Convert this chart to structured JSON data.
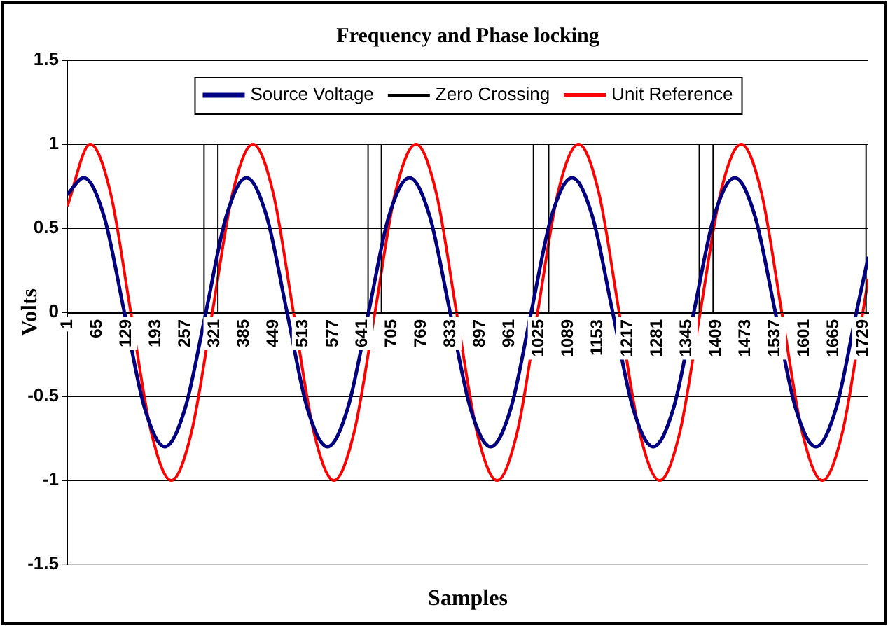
{
  "chart_data": {
    "type": "line",
    "title": "Frequency and Phase locking",
    "xlabel": "Samples",
    "ylabel": "Volts",
    "xlim": [
      1,
      1740
    ],
    "xticks": [
      1,
      65,
      129,
      193,
      257,
      321,
      385,
      449,
      513,
      577,
      641,
      705,
      769,
      833,
      897,
      961,
      1025,
      1089,
      1153,
      1217,
      1281,
      1345,
      1409,
      1473,
      1537,
      1601,
      1665,
      1729
    ],
    "ylim": [
      -1.5,
      1.5
    ],
    "yticks": [
      -1.5,
      -1,
      -0.5,
      0,
      0.5,
      1,
      1.5
    ],
    "grid": "y",
    "legend": "top",
    "marker": "none",
    "line_style": "solid",
    "series": [
      {
        "name": "Source Voltage",
        "color": "#000080",
        "x": [
          1,
          37,
          81,
          125,
          169,
          213,
          257,
          302,
          346,
          390,
          434,
          478,
          522,
          566,
          610,
          655,
          699,
          744,
          788,
          832,
          876,
          920,
          964,
          1008,
          1052,
          1097,
          1141,
          1185,
          1229,
          1273,
          1317,
          1361,
          1405,
          1450,
          1494,
          1538,
          1582,
          1626,
          1670,
          1714,
          1740
        ],
        "values": [
          0.7,
          0.8,
          0.57,
          0,
          -0.57,
          -0.8,
          -0.57,
          0,
          0.57,
          0.8,
          0.57,
          0,
          -0.57,
          -0.8,
          -0.57,
          0,
          0.57,
          0.8,
          0.57,
          0,
          -0.57,
          -0.8,
          -0.57,
          0,
          0.57,
          0.8,
          0.57,
          0,
          -0.57,
          -0.8,
          -0.57,
          0,
          0.57,
          0.8,
          0.57,
          0,
          -0.57,
          -0.8,
          -0.57,
          0,
          0.33
        ]
      },
      {
        "name": "Zero Crossing",
        "color": "#000000",
        "x": [
          1,
          298,
          298,
          328,
          328,
          654,
          654,
          683,
          683,
          1013,
          1013,
          1046,
          1046,
          1373,
          1373,
          1403,
          1403,
          1735,
          1735,
          1740
        ],
        "values": [
          0,
          0,
          1,
          1,
          0,
          0,
          1,
          1,
          0,
          0,
          1,
          1,
          0,
          0,
          1,
          1,
          0,
          0,
          1,
          1
        ]
      },
      {
        "name": "Unit Reference",
        "color": "#ff0000",
        "x": [
          1,
          51,
          95,
          139,
          183,
          227,
          271,
          316,
          360,
          404,
          448,
          492,
          536,
          580,
          624,
          669,
          713,
          758,
          802,
          846,
          890,
          934,
          978,
          1022,
          1066,
          1111,
          1155,
          1199,
          1243,
          1287,
          1331,
          1375,
          1419,
          1464,
          1508,
          1552,
          1596,
          1640,
          1684,
          1728,
          1740
        ],
        "values": [
          0.63,
          1,
          0.71,
          0,
          -0.71,
          -1,
          -0.71,
          0,
          0.71,
          1,
          0.71,
          0,
          -0.71,
          -1,
          -0.71,
          0,
          0.71,
          1,
          0.71,
          0,
          -0.71,
          -1,
          -0.71,
          0,
          0.71,
          1,
          0.71,
          0,
          -0.71,
          -1,
          -0.71,
          0,
          0.71,
          1,
          0.71,
          0,
          -0.71,
          -1,
          -0.71,
          0,
          0.2
        ]
      }
    ]
  }
}
